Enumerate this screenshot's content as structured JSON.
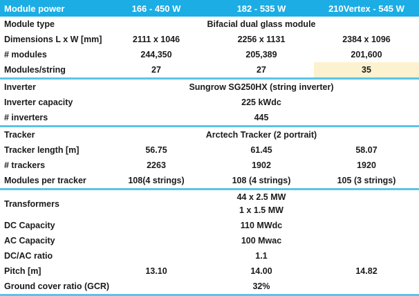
{
  "colors": {
    "header_bg": "#1CADE4",
    "header_text": "#FFFFFF",
    "divider": "#5BC3E8",
    "highlight_bg": "#FCF2CF",
    "text": "#1A1A1A",
    "background": "#FFFFFF"
  },
  "header": {
    "label": "Module power",
    "columns": [
      "166 - 450 W",
      "182 - 535 W",
      "210Vertex - 545 W"
    ]
  },
  "rows": [
    {
      "label": "Module type",
      "span": "Bifacial dual glass module"
    },
    {
      "label": "Dimensions L x W [mm]",
      "values": [
        "2111 x 1046",
        "2256 x 1131",
        "2384 x 1096"
      ]
    },
    {
      "label": "# modules",
      "values": [
        "244,350",
        "205,389",
        "201,600"
      ]
    },
    {
      "label": "Modules/string",
      "values": [
        "27",
        "27",
        "35"
      ],
      "highlighted_column": 3,
      "divider_after": true
    },
    {
      "label": "Inverter",
      "span": "Sungrow SG250HX (string inverter)"
    },
    {
      "label": "Inverter capacity",
      "span": "225 kWdc"
    },
    {
      "label": "# inverters",
      "span": "445",
      "divider_after": true
    },
    {
      "label": "Tracker",
      "span": "Arctech Tracker (2 portrait)"
    },
    {
      "label": "Tracker length [m]",
      "values": [
        "56.75",
        "61.45",
        "58.07"
      ]
    },
    {
      "label": "# trackers",
      "values": [
        "2263",
        "1902",
        "1920"
      ]
    },
    {
      "label": "Modules per tracker",
      "values": [
        "108(4 strings)",
        "108 (4 strings)",
        "105 (3 strings)"
      ],
      "divider_after": true
    },
    {
      "label": "Transformers",
      "span_lines": [
        "44 x 2.5 MW",
        "1 x 1.5 MW"
      ]
    },
    {
      "label": "DC Capacity",
      "span": "110 MWdc"
    },
    {
      "label": "AC Capacity",
      "span": "100 Mwac"
    },
    {
      "label": "DC/AC ratio",
      "span": "1.1"
    },
    {
      "label": "Pitch [m]",
      "values": [
        "13.10",
        "14.00",
        "14.82"
      ]
    },
    {
      "label": "Ground cover ratio (GCR)",
      "span": "32%",
      "divider_after": true
    }
  ]
}
